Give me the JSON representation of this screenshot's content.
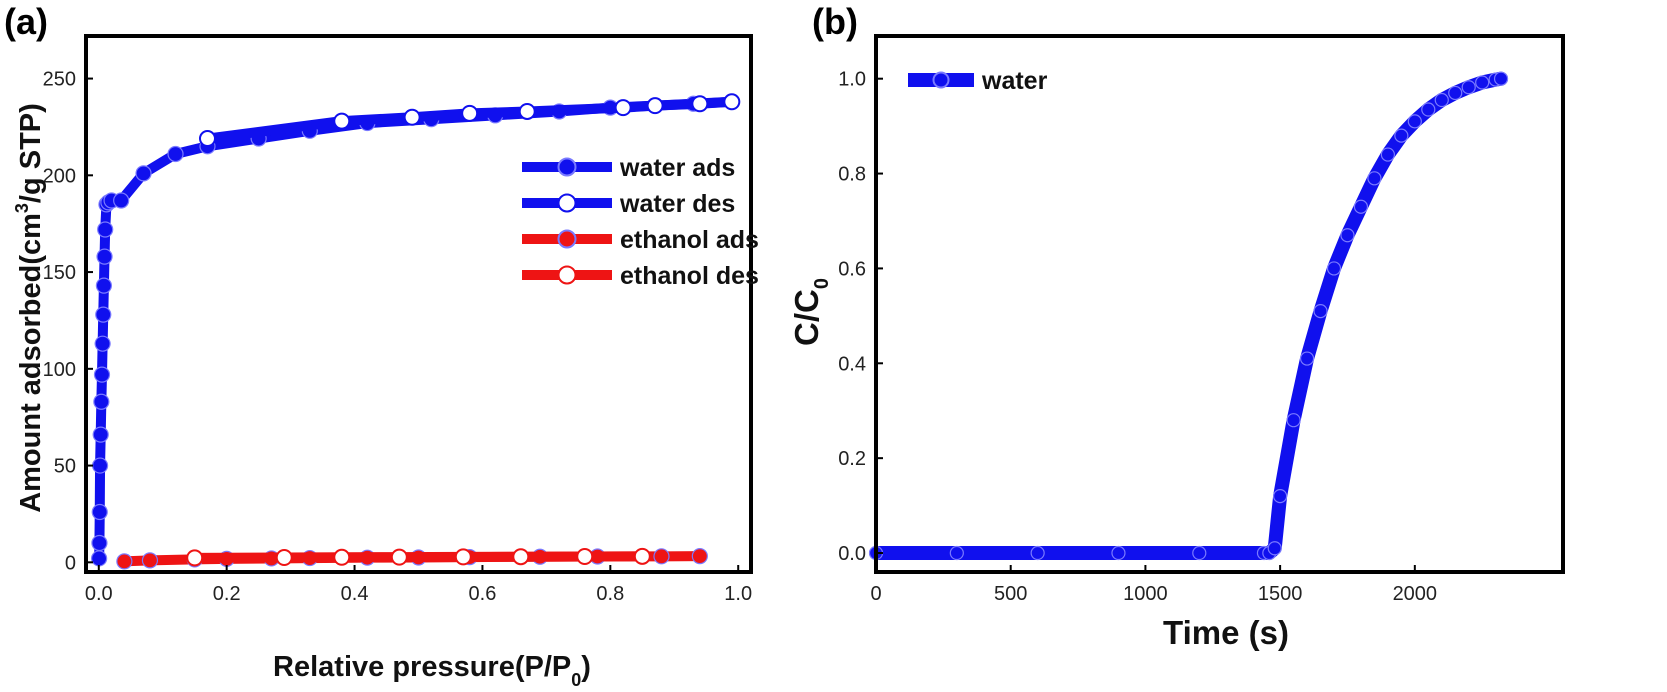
{
  "chart_data": [
    {
      "panel_label": "(a)",
      "type": "line",
      "xlabel": "Relative pressure(P/P",
      "xlabel_sub": "0",
      "xlabel_tail": ")",
      "ylabel": "Amount adsorbed(cm",
      "ylabel_sup": "3",
      "ylabel_tail": "/g STP)",
      "xlim": [
        -0.02,
        1.02
      ],
      "ylim": [
        -5,
        272
      ],
      "xticks": [
        0.0,
        0.2,
        0.4,
        0.6,
        0.8,
        1.0
      ],
      "xtick_labels": [
        "0.0",
        "0.2",
        "0.4",
        "0.6",
        "0.8",
        "1.0"
      ],
      "yticks": [
        0,
        50,
        100,
        150,
        200,
        250
      ],
      "ytick_labels": [
        "0",
        "50",
        "100",
        "150",
        "200",
        "250"
      ],
      "legend_position": "center-right",
      "grid": false,
      "series": [
        {
          "name": "water ads",
          "color": "#1010ee",
          "marker": "filled",
          "x": [
            0.0005,
            0.001,
            0.0015,
            0.002,
            0.003,
            0.004,
            0.005,
            0.006,
            0.007,
            0.008,
            0.009,
            0.01,
            0.012,
            0.015,
            0.02,
            0.035,
            0.07,
            0.12,
            0.17,
            0.25,
            0.33,
            0.42,
            0.52,
            0.62,
            0.72,
            0.8,
            0.87,
            0.93,
            0.99
          ],
          "y": [
            2,
            10,
            26,
            50,
            66,
            83,
            97,
            113,
            128,
            143,
            158,
            172,
            185,
            186,
            187,
            187,
            201,
            211,
            215,
            219,
            223,
            227,
            229,
            231,
            233,
            235,
            236,
            237,
            238
          ]
        },
        {
          "name": "water des",
          "color": "#1010ee",
          "marker": "open",
          "x": [
            0.99,
            0.94,
            0.87,
            0.82,
            0.67,
            0.58,
            0.49,
            0.38,
            0.17
          ],
          "y": [
            238,
            237,
            236,
            235,
            233,
            232,
            230,
            228,
            219
          ]
        },
        {
          "name": "ethanol ads",
          "color": "#ee1414",
          "marker": "filled",
          "x": [
            0.04,
            0.08,
            0.15,
            0.2,
            0.27,
            0.33,
            0.42,
            0.5,
            0.58,
            0.69,
            0.78,
            0.88,
            0.94
          ],
          "y": [
            0.5,
            1,
            1.5,
            1.8,
            2,
            2.2,
            2.4,
            2.5,
            2.7,
            2.9,
            3,
            3.1,
            3.2
          ]
        },
        {
          "name": "ethanol des",
          "color": "#ee1414",
          "marker": "open",
          "x": [
            0.15,
            0.29,
            0.38,
            0.47,
            0.57,
            0.66,
            0.76,
            0.85
          ],
          "y": [
            2.3,
            2.5,
            2.6,
            2.7,
            2.8,
            2.9,
            3.0,
            3.1
          ]
        }
      ]
    },
    {
      "panel_label": "(b)",
      "type": "line",
      "xlabel": "Time (s)",
      "ylabel": "C/C",
      "ylabel_sub": "0",
      "xlim": [
        0,
        2550
      ],
      "ylim": [
        -0.04,
        1.09
      ],
      "xticks": [
        0,
        500,
        1000,
        1500,
        2000
      ],
      "xtick_labels": [
        "0",
        "500",
        "1000",
        "1500",
        "2000"
      ],
      "yticks": [
        0.0,
        0.2,
        0.4,
        0.6,
        0.8,
        1.0
      ],
      "ytick_labels": [
        "0.0",
        "0.2",
        "0.4",
        "0.6",
        "0.8",
        "1.0"
      ],
      "legend_position": "top-left",
      "grid": false,
      "series": [
        {
          "name": "water",
          "color": "#1010ee",
          "marker": "filled",
          "x": [
            0,
            300,
            600,
            900,
            1200,
            1440,
            1460,
            1480,
            1500,
            1550,
            1600,
            1650,
            1700,
            1750,
            1800,
            1850,
            1900,
            1950,
            2000,
            2050,
            2100,
            2150,
            2200,
            2250,
            2300,
            2320
          ],
          "y": [
            0,
            0,
            0,
            0,
            0,
            0,
            0,
            0.01,
            0.12,
            0.28,
            0.41,
            0.51,
            0.6,
            0.67,
            0.73,
            0.79,
            0.84,
            0.88,
            0.91,
            0.935,
            0.955,
            0.97,
            0.982,
            0.992,
            0.998,
            1.0
          ]
        }
      ]
    }
  ]
}
